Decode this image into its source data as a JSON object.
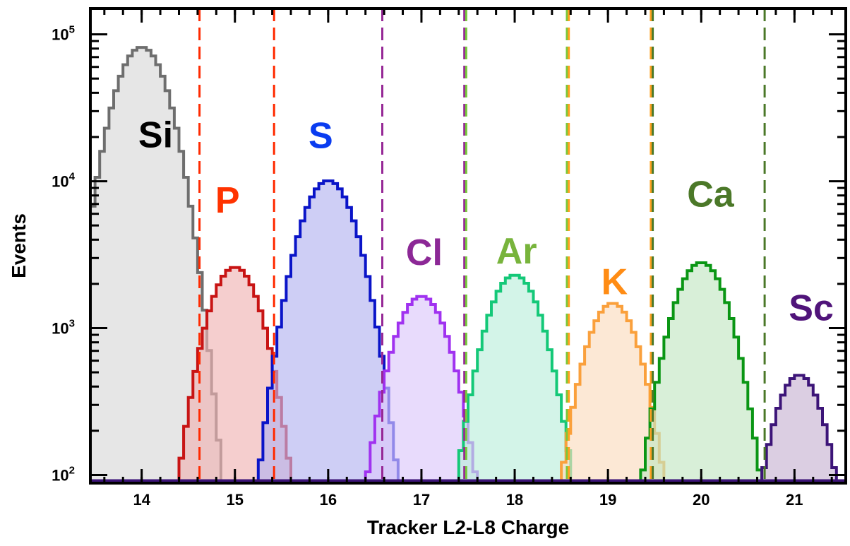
{
  "chart_data": {
    "type": "area",
    "xlabel": "Tracker L2-L8 Charge",
    "ylabel": "Events",
    "xlim": [
      13.45,
      21.55
    ],
    "ylim": [
      88,
      150000
    ],
    "yscale": "log",
    "grid": false,
    "x_ticks": [
      14,
      15,
      16,
      17,
      18,
      19,
      20,
      21
    ],
    "y_ticks": [
      {
        "value": 100,
        "base": "10",
        "exp": "2"
      },
      {
        "value": 1000,
        "base": "10",
        "exp": "3"
      },
      {
        "value": 10000,
        "base": "10",
        "exp": "4"
      },
      {
        "value": 100000,
        "base": "10",
        "exp": "5"
      }
    ],
    "series": [
      {
        "name": "Si",
        "center": 14.0,
        "sigma": 0.235,
        "peak": 82000,
        "line": "#6e6e6e",
        "fill": "#d9d9d9",
        "label_at": [
          14.15,
          17000
        ],
        "label_color": "#000000"
      },
      {
        "name": "P",
        "center": 15.0,
        "sigma": 0.235,
        "peak": 2600,
        "line": "#c81414",
        "fill": "#f0b4b4",
        "label_at": [
          14.92,
          6100
        ],
        "label_color": "#ff3300"
      },
      {
        "name": "S",
        "center": 16.0,
        "sigma": 0.245,
        "peak": 10100,
        "line": "#0a14c8",
        "fill": "#b4b4f0",
        "label_at": [
          15.92,
          16800
        ],
        "label_color": "#0a3cf0"
      },
      {
        "name": "Cl",
        "center": 17.0,
        "sigma": 0.245,
        "peak": 1650,
        "line": "#a032f0",
        "fill": "#dcc8fa",
        "label_at": [
          17.03,
          2700
        ],
        "label_color": "#8c2896"
      },
      {
        "name": "Ar",
        "center": 18.0,
        "sigma": 0.245,
        "peak": 2300,
        "line": "#14c878",
        "fill": "#bceedb",
        "label_at": [
          18.02,
          2750
        ],
        "label_color": "#78b43c"
      },
      {
        "name": "K",
        "center": 19.05,
        "sigma": 0.235,
        "peak": 1480,
        "line": "#faa03c",
        "fill": "#fadcbe",
        "label_at": [
          19.07,
          1700
        ],
        "label_color": "#ff8c14"
      },
      {
        "name": "Ca",
        "center": 20.0,
        "sigma": 0.245,
        "peak": 2800,
        "line": "#0a9614",
        "fill": "#c3e6c3",
        "label_at": [
          20.1,
          6700
        ],
        "label_color": "#4b7828"
      },
      {
        "name": "Sc",
        "center": 21.05,
        "sigma": 0.22,
        "peak": 480,
        "line": "#3c1478",
        "fill": "#c8b4d2",
        "label_at": [
          21.18,
          1130
        ],
        "label_color": "#50147a"
      }
    ],
    "cut_lines": [
      {
        "x": 14.62,
        "color": "#ff2a00"
      },
      {
        "x": 15.42,
        "color": "#ff2a00"
      },
      {
        "x": 16.58,
        "color": "#962896"
      },
      {
        "x": 17.46,
        "color": "#962896"
      },
      {
        "x": 17.48,
        "color": "#78c83c"
      },
      {
        "x": 18.56,
        "color": "#78c83c"
      },
      {
        "x": 18.58,
        "color": "#ffa01e"
      },
      {
        "x": 19.46,
        "color": "#ffa01e"
      },
      {
        "x": 19.48,
        "color": "#4b7828"
      },
      {
        "x": 20.68,
        "color": "#4b7828"
      }
    ]
  }
}
